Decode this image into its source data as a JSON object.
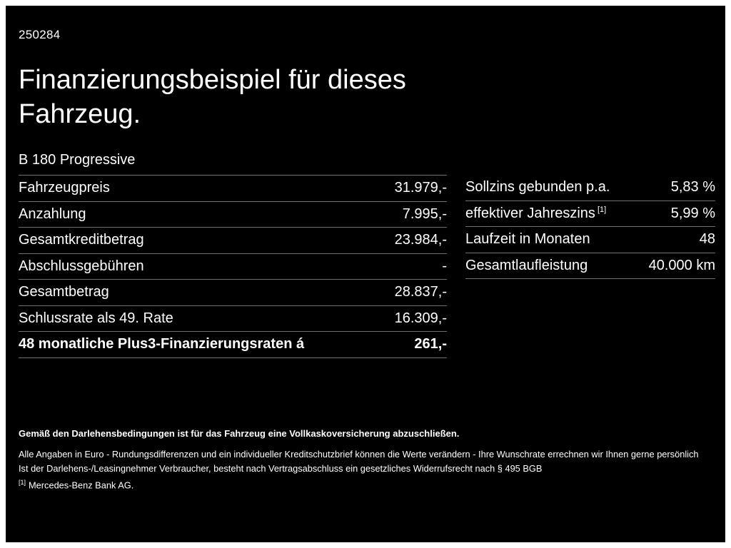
{
  "page": {
    "ref_number": "250284",
    "title": "Finanzierungsbeispiel für dieses\nFahrzeug.",
    "model": "B 180 Progressive"
  },
  "left_table": {
    "rows": [
      {
        "label": "Fahrzeugpreis",
        "value": "31.979,-"
      },
      {
        "label": "Anzahlung",
        "value": "7.995,-"
      },
      {
        "label": "Gesamtkreditbetrag",
        "value": "23.984,-"
      },
      {
        "label": "Abschlussgebühren",
        "value": "-"
      },
      {
        "label": "Gesamtbetrag",
        "value": "28.837,-"
      },
      {
        "label": "Schlussrate als 49. Rate",
        "value": "16.309,-"
      },
      {
        "label": "48 monatliche Plus3-Finanzierungsraten á",
        "value": "261,-"
      }
    ]
  },
  "right_table": {
    "rows": [
      {
        "label": "Sollzins gebunden p.a.",
        "sup": "",
        "value": "5,83 %"
      },
      {
        "label": "effektiver Jahreszins",
        "sup": "[1]",
        "value": "5,99 %"
      },
      {
        "label": "Laufzeit in Monaten",
        "sup": "",
        "value": "48"
      },
      {
        "label": "Gesamtlaufleistung",
        "sup": "",
        "value": "40.000 km"
      }
    ]
  },
  "footnotes": {
    "line1": "Gemäß den Darlehensbedingungen ist für das Fahrzeug eine Vollkaskoversicherung abzuschließen.",
    "line2": "Alle Angaben in Euro - Rundungsdifferenzen und ein individueller Kreditschutzbrief können die Werte verändern - Ihre Wunschrate errechnen wir Ihnen gerne persönlich",
    "line3": "Ist der Darlehens-/Leasingnehmer Verbraucher, besteht nach Vertragsabschluss ein gesetzliches Widerrufsrecht nach § 495 BGB",
    "line4_sup": "[1]",
    "line4": "Mercedes-Benz Bank AG."
  },
  "colors": {
    "background": "#000000",
    "frame": "#ffffff",
    "text": "#ffffff",
    "divider": "#6f6f6f"
  }
}
